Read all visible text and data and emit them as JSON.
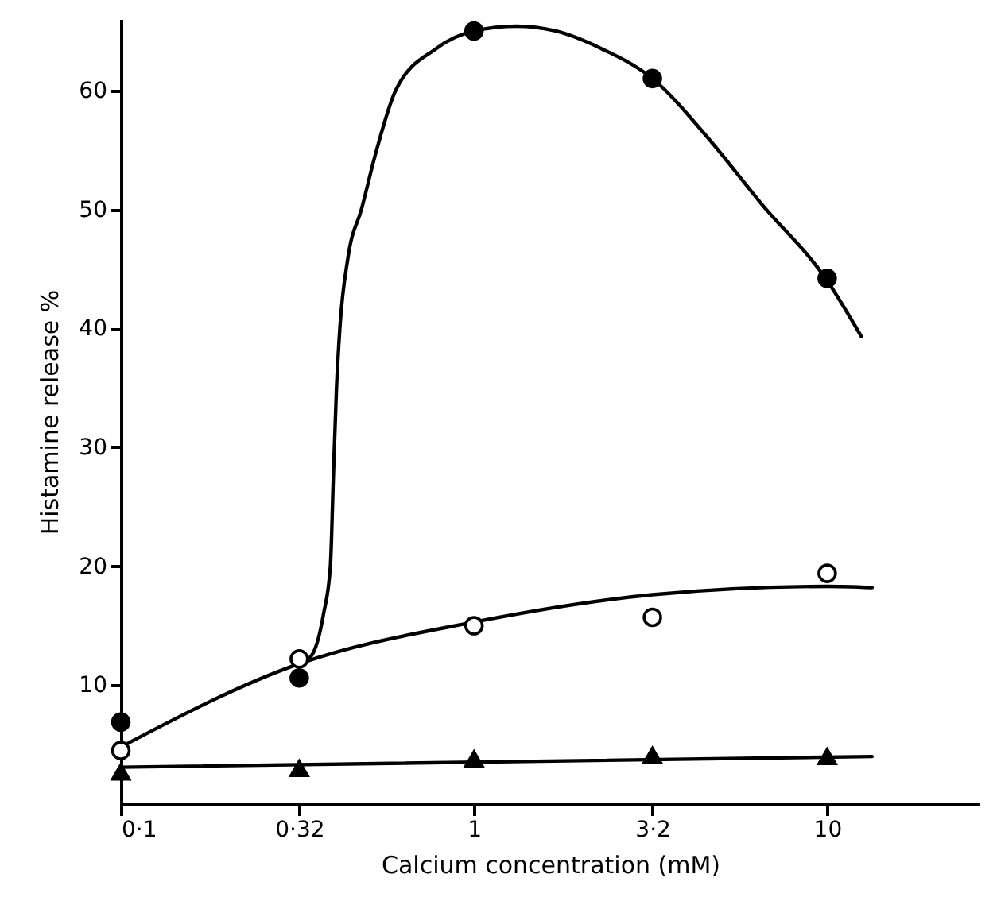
{
  "chart_data": {
    "type": "scatter",
    "xlabel": "Calcium concentration (mM)",
    "ylabel": "Histamine release %",
    "log": "x",
    "grid": false,
    "xlim": [
      0.1,
      27
    ],
    "ylim": [
      0,
      66
    ],
    "xticks": [
      {
        "value": 0.1,
        "label": "0·1"
      },
      {
        "value": 0.32,
        "label": "0·32"
      },
      {
        "value": 1,
        "label": "1"
      },
      {
        "value": 3.2,
        "label": "3·2"
      },
      {
        "value": 10,
        "label": "10"
      }
    ],
    "yticks": [
      10,
      20,
      30,
      40,
      50,
      60
    ],
    "series": [
      {
        "type": "line",
        "color": "#000000",
        "marker": "none",
        "x": [
          0.32,
          0.347,
          0.375,
          0.392,
          0.4,
          0.408,
          0.417,
          0.44,
          0.48,
          0.53,
          0.6,
          0.78,
          1,
          1.32,
          1.7,
          2.3,
          3.2,
          4.6,
          6.5,
          10,
          12.5
        ],
        "values": [
          11.8,
          12.5,
          16,
          20,
          27.8,
          35,
          40,
          46,
          50,
          55,
          60,
          63.5,
          65,
          65.4,
          65,
          63.5,
          61,
          56,
          50.5,
          44,
          39.3
        ]
      },
      {
        "type": "line",
        "color": "#000000",
        "marker": "none",
        "x": [
          0.1,
          0.32,
          1,
          3.2,
          10,
          13.4
        ],
        "values": [
          4.8,
          11.8,
          15.3,
          17.6,
          18.3,
          18.2
        ]
      },
      {
        "type": "line",
        "color": "#000000",
        "marker": "none",
        "x": [
          0.1,
          13.4
        ],
        "values": [
          3.1,
          4.0
        ]
      },
      {
        "color": "#000000",
        "marker": "circle",
        "x": [
          0.1,
          0.32,
          1,
          3.2,
          10
        ],
        "values": [
          6.9,
          10.6,
          65,
          61,
          44.2
        ]
      },
      {
        "color": "#ffffff",
        "marker": "circle",
        "x": [
          0.1,
          0.32,
          1,
          3.2,
          10
        ],
        "values": [
          4.5,
          12.2,
          15,
          15.7,
          19.4
        ]
      },
      {
        "color": "#000000",
        "marker": "triangle",
        "x": [
          0.1,
          0.32,
          1,
          3.2,
          10
        ],
        "values": [
          2.7,
          3.0,
          3.8,
          4.1,
          4.0
        ]
      }
    ]
  }
}
